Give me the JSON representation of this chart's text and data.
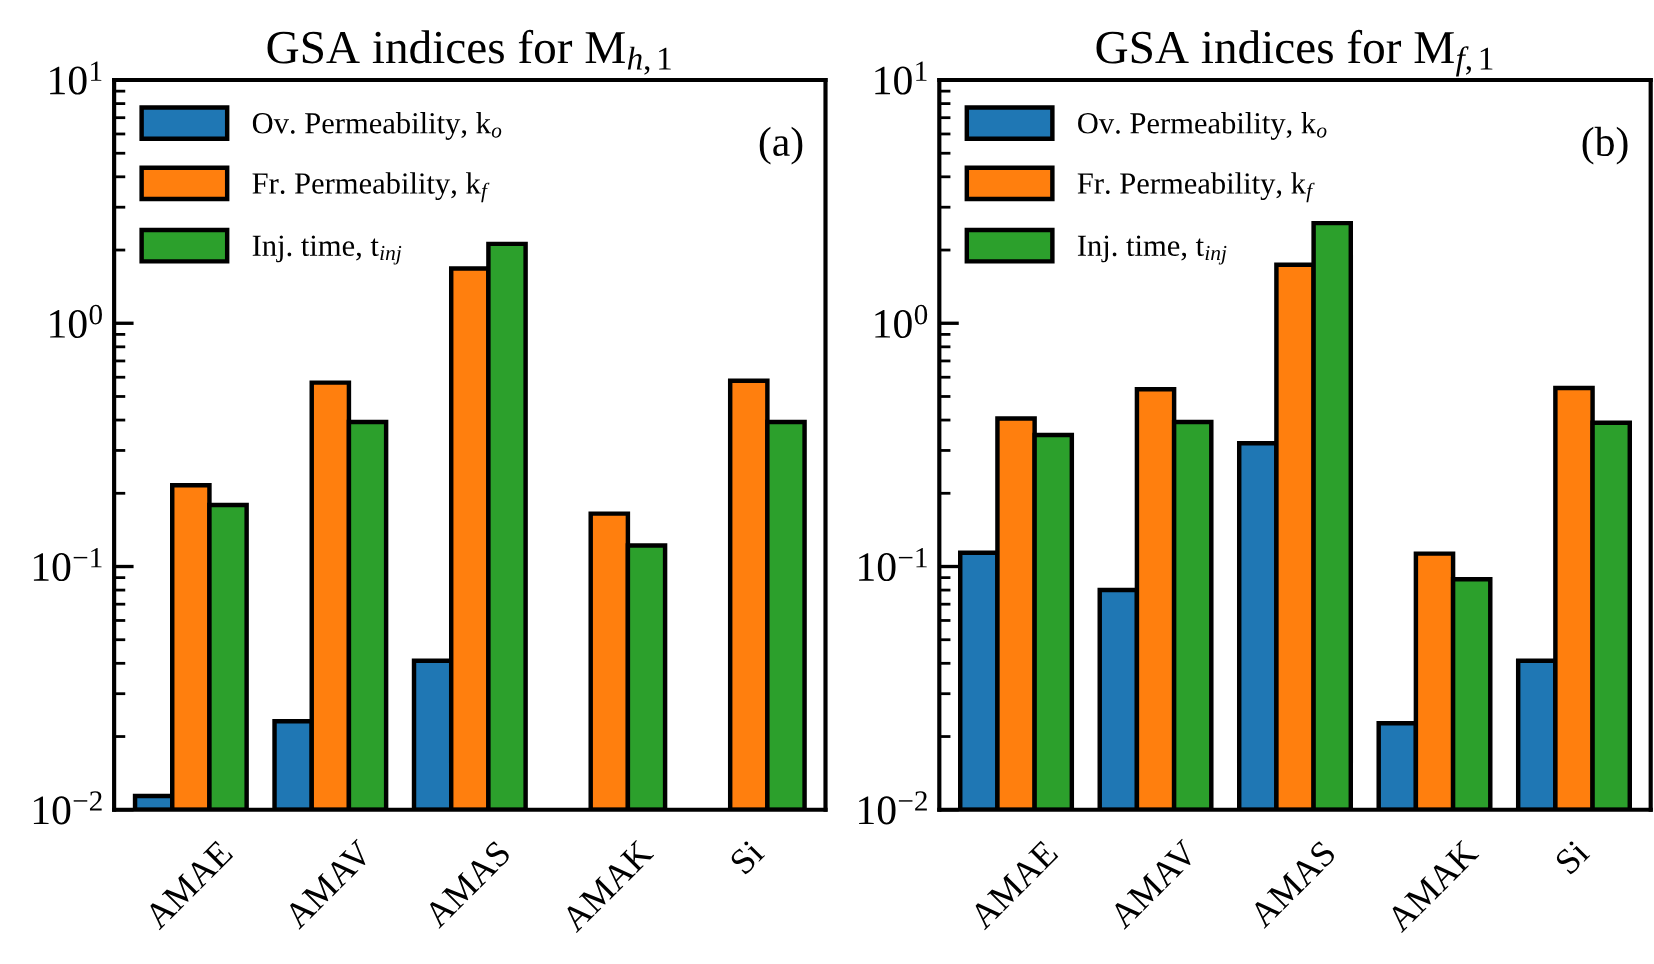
{
  "chart_data": [
    {
      "type": "bar",
      "title": "GSA indices for M$_{h,1}$",
      "categories": [
        "AMAE",
        "AMAV",
        "AMAS",
        "AMAK",
        "Si"
      ],
      "series": [
        {
          "name": "Ov. Permeability, k$_{o}$",
          "color": "#1f77b4",
          "values": [
            0.0114,
            0.0231,
            0.041,
            null,
            null
          ]
        },
        {
          "name": "Fr. Permeability, k$_{f}$",
          "color": "#ff7f0e",
          "values": [
            0.216,
            0.57,
            1.68,
            0.165,
            0.58
          ]
        },
        {
          "name": "Inj. time, t$_{inj}$",
          "color": "#2ca02c",
          "values": [
            0.179,
            0.393,
            2.12,
            0.122,
            0.393
          ]
        }
      ],
      "log": "y",
      "ylim": [
        0.01,
        10
      ],
      "yticks": [
        {
          "value": 0.01,
          "label": "10$^{−2}$"
        },
        {
          "value": 0.1,
          "label": "10$^{−1}$"
        },
        {
          "value": 1,
          "label": "10$^{0}$"
        },
        {
          "value": 10,
          "label": "10$^{1}$"
        }
      ],
      "annotations": [
        "(a)"
      ],
      "legend": "top left",
      "grid": false
    },
    {
      "type": "bar",
      "title": "GSA indices for M$_{f,1}$",
      "categories": [
        "AMAE",
        "AMAV",
        "AMAS",
        "AMAK",
        "Si"
      ],
      "series": [
        {
          "name": "Ov. Permeability, k$_{o}$",
          "color": "#1f77b4",
          "values": [
            0.114,
            0.08,
            0.321,
            0.0227,
            0.041
          ]
        },
        {
          "name": "Fr. Permeability, k$_{f}$",
          "color": "#ff7f0e",
          "values": [
            0.406,
            0.535,
            1.74,
            0.113,
            0.542
          ]
        },
        {
          "name": "Inj. time, t$_{inj}$",
          "color": "#2ca02c",
          "values": [
            0.347,
            0.393,
            2.58,
            0.0887,
            0.39
          ]
        }
      ],
      "log": "y",
      "ylim": [
        0.01,
        10
      ],
      "yticks": [
        {
          "value": 0.01,
          "label": "10$^{−2}$"
        },
        {
          "value": 0.1,
          "label": "10$^{−1}$"
        },
        {
          "value": 1,
          "label": "10$^{0}$"
        },
        {
          "value": 10,
          "label": "10$^{1}$"
        }
      ],
      "annotations": [
        "(b)"
      ],
      "legend": "top left",
      "grid": false
    }
  ]
}
